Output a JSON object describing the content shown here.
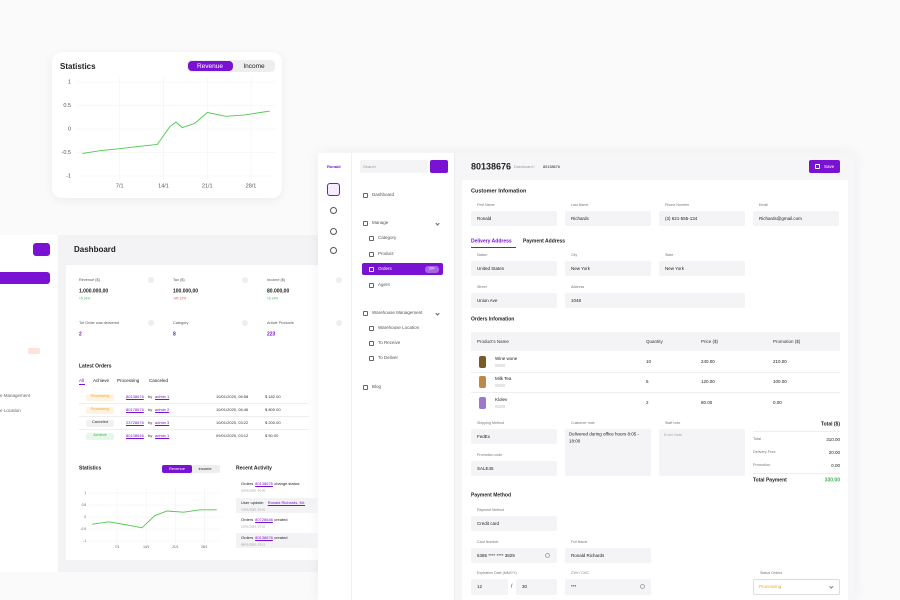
{
  "stats_card": {
    "title": "Statistics",
    "tabs": [
      "Revenue",
      "Income"
    ],
    "chart": {
      "type": "line",
      "x": [
        1,
        4,
        7,
        10,
        13,
        15,
        16,
        17,
        19,
        21,
        24,
        27,
        31
      ],
      "values": [
        -0.52,
        -0.46,
        -0.42,
        -0.37,
        -0.33,
        0.05,
        0.15,
        0.03,
        0.12,
        0.35,
        0.27,
        0.3,
        0.38
      ],
      "color": "#4cc94c",
      "xlim": [
        0,
        32
      ],
      "xticks": [
        {
          "value": 7,
          "label": "7/1"
        },
        {
          "value": 14,
          "label": "14/1"
        },
        {
          "value": 21,
          "label": "21/1"
        },
        {
          "value": 28,
          "label": "28/1"
        }
      ],
      "ylim": [
        -1,
        1
      ],
      "yticks": [
        1,
        0.5,
        0,
        -0.5,
        -1
      ],
      "grid": true
    }
  },
  "dashboard": {
    "title": "Dashboard",
    "cards": [
      {
        "label": "Revenue ($)",
        "value": "1.000.000,00",
        "change": "+6 14%"
      },
      {
        "label": "Tax ($)",
        "value": "100.000,00",
        "change": "-4% 12%"
      },
      {
        "label": "Income ($)",
        "value": "80.000,00",
        "change": "+6 14%"
      },
      {
        "label": "Tot Order was delivered",
        "value": "2"
      },
      {
        "label": "Category",
        "value": "8"
      },
      {
        "label": "Article Products",
        "value": "223"
      }
    ],
    "latest_orders": {
      "title": "Latest Orders",
      "tabs": [
        "All",
        "Achieve",
        "Processing",
        "Canceled"
      ],
      "rows": [
        [
          "Processing",
          "80138676",
          "by",
          "admin 1",
          "10/01/2020, 06:58",
          "$ 182.00"
        ],
        [
          "Processing",
          "80178676",
          "by",
          "admin 2",
          "10/01/2020, 06:46",
          "$ 800.00"
        ],
        [
          "Canceled",
          "23728676",
          "by",
          "admin 3",
          "10/01/2020, 03:22",
          "$ 200.00"
        ],
        [
          "Achieve",
          "80138646",
          "by",
          "admin 1",
          "09/01/2020, 03:12",
          "$ 50.00"
        ]
      ]
    },
    "statistics": {
      "title": "Statistics",
      "tabs": [
        "Revenue",
        "Income"
      ],
      "chart": {
        "type": "line",
        "x": [
          1,
          5,
          10,
          13,
          16,
          19,
          23,
          27,
          31
        ],
        "values": [
          -0.3,
          -0.2,
          -0.35,
          -0.45,
          0.05,
          0.25,
          0.2,
          0.3,
          0.3
        ],
        "color": "#4cc94c",
        "xlim": [
          0,
          32
        ],
        "xticks": [
          {
            "value": 7,
            "label": "7/1"
          },
          {
            "value": 14,
            "label": "14/1"
          },
          {
            "value": 21,
            "label": "21/1"
          },
          {
            "value": 28,
            "label": "28/1"
          }
        ],
        "ylim": [
          -1,
          1
        ],
        "yticks": [
          1,
          0.5,
          0,
          -0.5,
          -1
        ],
        "grid": true
      }
    },
    "recent_activity": {
      "title": "Recent Activity",
      "items": [
        {
          "text": "Orders",
          "link": "80138676",
          "rest": "change status:",
          "time": "10/01/2020, 06:56"
        },
        {
          "text": "User update:",
          "link": "Ronald Richards, Mr.",
          "time": "10/01/2020, 03:42"
        },
        {
          "text": "Orders",
          "link": "80728646",
          "rest": "created",
          "time": "10/01/2020, 03:22"
        },
        {
          "text": "Orders",
          "link": "80138676",
          "rest": "created",
          "time": "09/01/2020, 03:12"
        }
      ]
    },
    "sidebar_fragment": [
      "e Management",
      "e Location"
    ]
  },
  "sidebar": {
    "logo": "Ronald",
    "search": "Search",
    "nav": [
      "Dashboard",
      "Manage",
      "Category",
      "Product",
      "Orders",
      "Agent",
      "Warehouse Management",
      "Warehouse Location",
      "To Receive",
      "To Deliver",
      "Blog"
    ],
    "badge": "20+"
  },
  "order": {
    "id": "80138676",
    "breadcrumb": [
      "Dashboard /",
      "80138676"
    ],
    "save": "Save",
    "customer": {
      "title": "Customer Infomation",
      "fields": [
        {
          "label": "First Name",
          "value": "Ronald"
        },
        {
          "label": "Last Name",
          "value": "Richards"
        },
        {
          "label": "Phone Number",
          "value": "(3) 621-555-134"
        },
        {
          "label": "Email",
          "value": "Richards@gmail.com"
        }
      ]
    },
    "address": {
      "tabs": [
        "Delivery Address",
        "Payment Address"
      ],
      "fields": [
        {
          "label": "Nation",
          "value": "United States"
        },
        {
          "label": "City",
          "value": "New York"
        },
        {
          "label": "State",
          "value": "New York"
        },
        {
          "label": "Street",
          "value": "Union Ave"
        },
        {
          "label": "Address",
          "value": "1048"
        }
      ]
    },
    "items": {
      "title": "Orders Infomation",
      "headers": [
        "Product's Name",
        "Quantity",
        "Price ($)",
        "Promotion ($)"
      ],
      "rows": [
        [
          "Wine wone",
          10,
          "240.00",
          "210.00"
        ],
        [
          "Milk Tea",
          5,
          "120.00",
          "100.00"
        ],
        [
          "Klolev",
          2,
          "80.00",
          "0.00"
        ]
      ]
    },
    "shipping": {
      "label": "Shipping Method",
      "value": "FedEx"
    },
    "promotion_code": {
      "label": "Promotion code",
      "value": "SALE45"
    },
    "customer_note": {
      "label": "Customer note",
      "value": "Delivered during office hours 8:05 - 18:00"
    },
    "staff_note": {
      "label": "Staff note",
      "placeholder": "Enter Note"
    },
    "totals": {
      "title": "Total ($)",
      "rows": [
        [
          "Total",
          "310.00"
        ],
        [
          "Delivery Free",
          "20.00"
        ],
        [
          "Promotion",
          "0.00"
        ]
      ],
      "payment_label": "Total Payment",
      "payment_value": "330.00"
    },
    "payment": {
      "title": "Payment Method",
      "method": {
        "label": "Payment Method",
        "value": "Credit card"
      },
      "card": {
        "label": "Card Number",
        "value": "6385 **** **** 3829"
      },
      "name": {
        "label": "Full Name",
        "value": "Ronald Richards"
      },
      "expiry": {
        "label": "Expiration Date (MM/YY)",
        "month": "12",
        "sep": "/",
        "year": "30"
      },
      "cvv": {
        "label": "CVV / CVC",
        "value": "***"
      },
      "status": {
        "label": "Status Orders",
        "value": "Processing"
      }
    }
  }
}
